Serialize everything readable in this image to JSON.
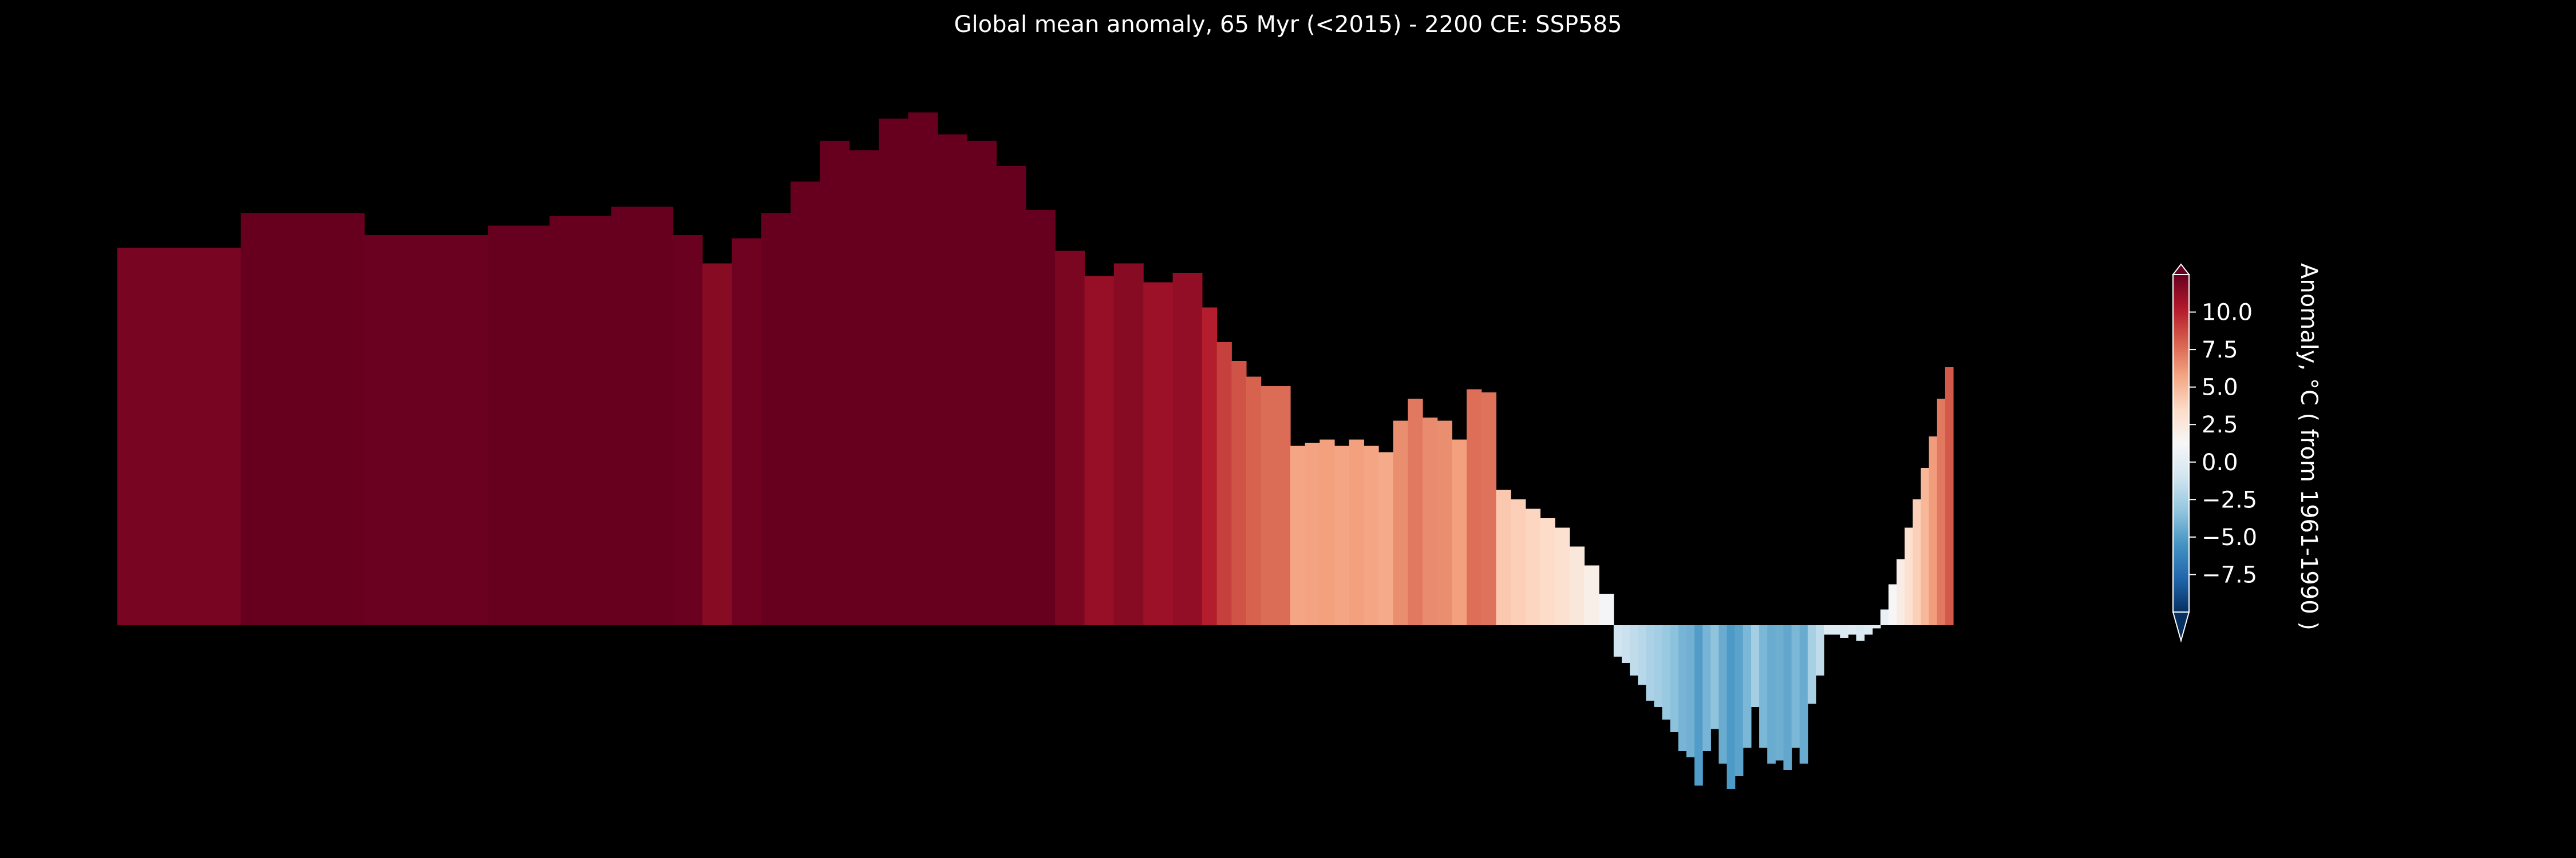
{
  "chart_data": {
    "type": "bar",
    "title": "Global mean anomaly, 65 Myr (<2015) - 2200 CE: SSP585",
    "xlabel": "",
    "ylabel": "",
    "axes_visible": false,
    "grid": false,
    "colormap": "RdBu_r",
    "color_range": [
      -10,
      12.5
    ],
    "series_values": [
      12.0,
      12.0,
      13.1,
      13.1,
      12.4,
      12.4,
      12.7,
      13.0,
      13.3,
      12.4,
      11.5,
      12.3,
      13.1,
      14.1,
      15.4,
      15.1,
      16.1,
      16.3,
      15.6,
      15.4,
      14.6,
      13.2,
      11.9,
      11.1,
      11.5,
      10.9,
      11.2,
      10.1,
      9.0,
      8.4,
      7.9,
      7.6,
      7.6,
      5.7,
      5.8,
      5.9,
      5.7,
      5.9,
      5.7,
      5.5,
      6.5,
      7.2,
      6.6,
      6.5,
      5.9,
      7.5,
      7.4,
      4.3,
      4.0,
      3.7,
      3.4,
      3.1,
      2.5,
      1.9,
      1.0,
      -1.0,
      -1.2,
      -1.6,
      -1.9,
      -2.4,
      -2.6,
      -3.0,
      -3.4,
      -4.0,
      -4.2,
      -5.1,
      -4.0,
      -3.3,
      -4.4,
      -5.2,
      -4.8,
      -3.9,
      -2.6,
      -3.9,
      -4.4,
      -4.3,
      -4.6,
      -3.9,
      -4.4,
      -2.5,
      -1.6,
      -0.3,
      -0.3,
      -0.4,
      -0.3,
      -0.5,
      -0.3,
      -0.1,
      0.5,
      1.3,
      2.1,
      3.1,
      4.0,
      5.0,
      6.0,
      7.2,
      8.2
    ],
    "colorbar": {
      "label": "Anomaly, °C ( from 1961-1990 )",
      "ticks": [
        10.0,
        7.5,
        5.0,
        2.5,
        0.0,
        -2.5,
        -5.0,
        -7.5
      ],
      "tick_labels": [
        "10.0",
        "7.5",
        "5.0",
        "2.5",
        "0.0",
        "−2.5",
        "−5.0",
        "−7.5"
      ],
      "extend": "both"
    }
  }
}
